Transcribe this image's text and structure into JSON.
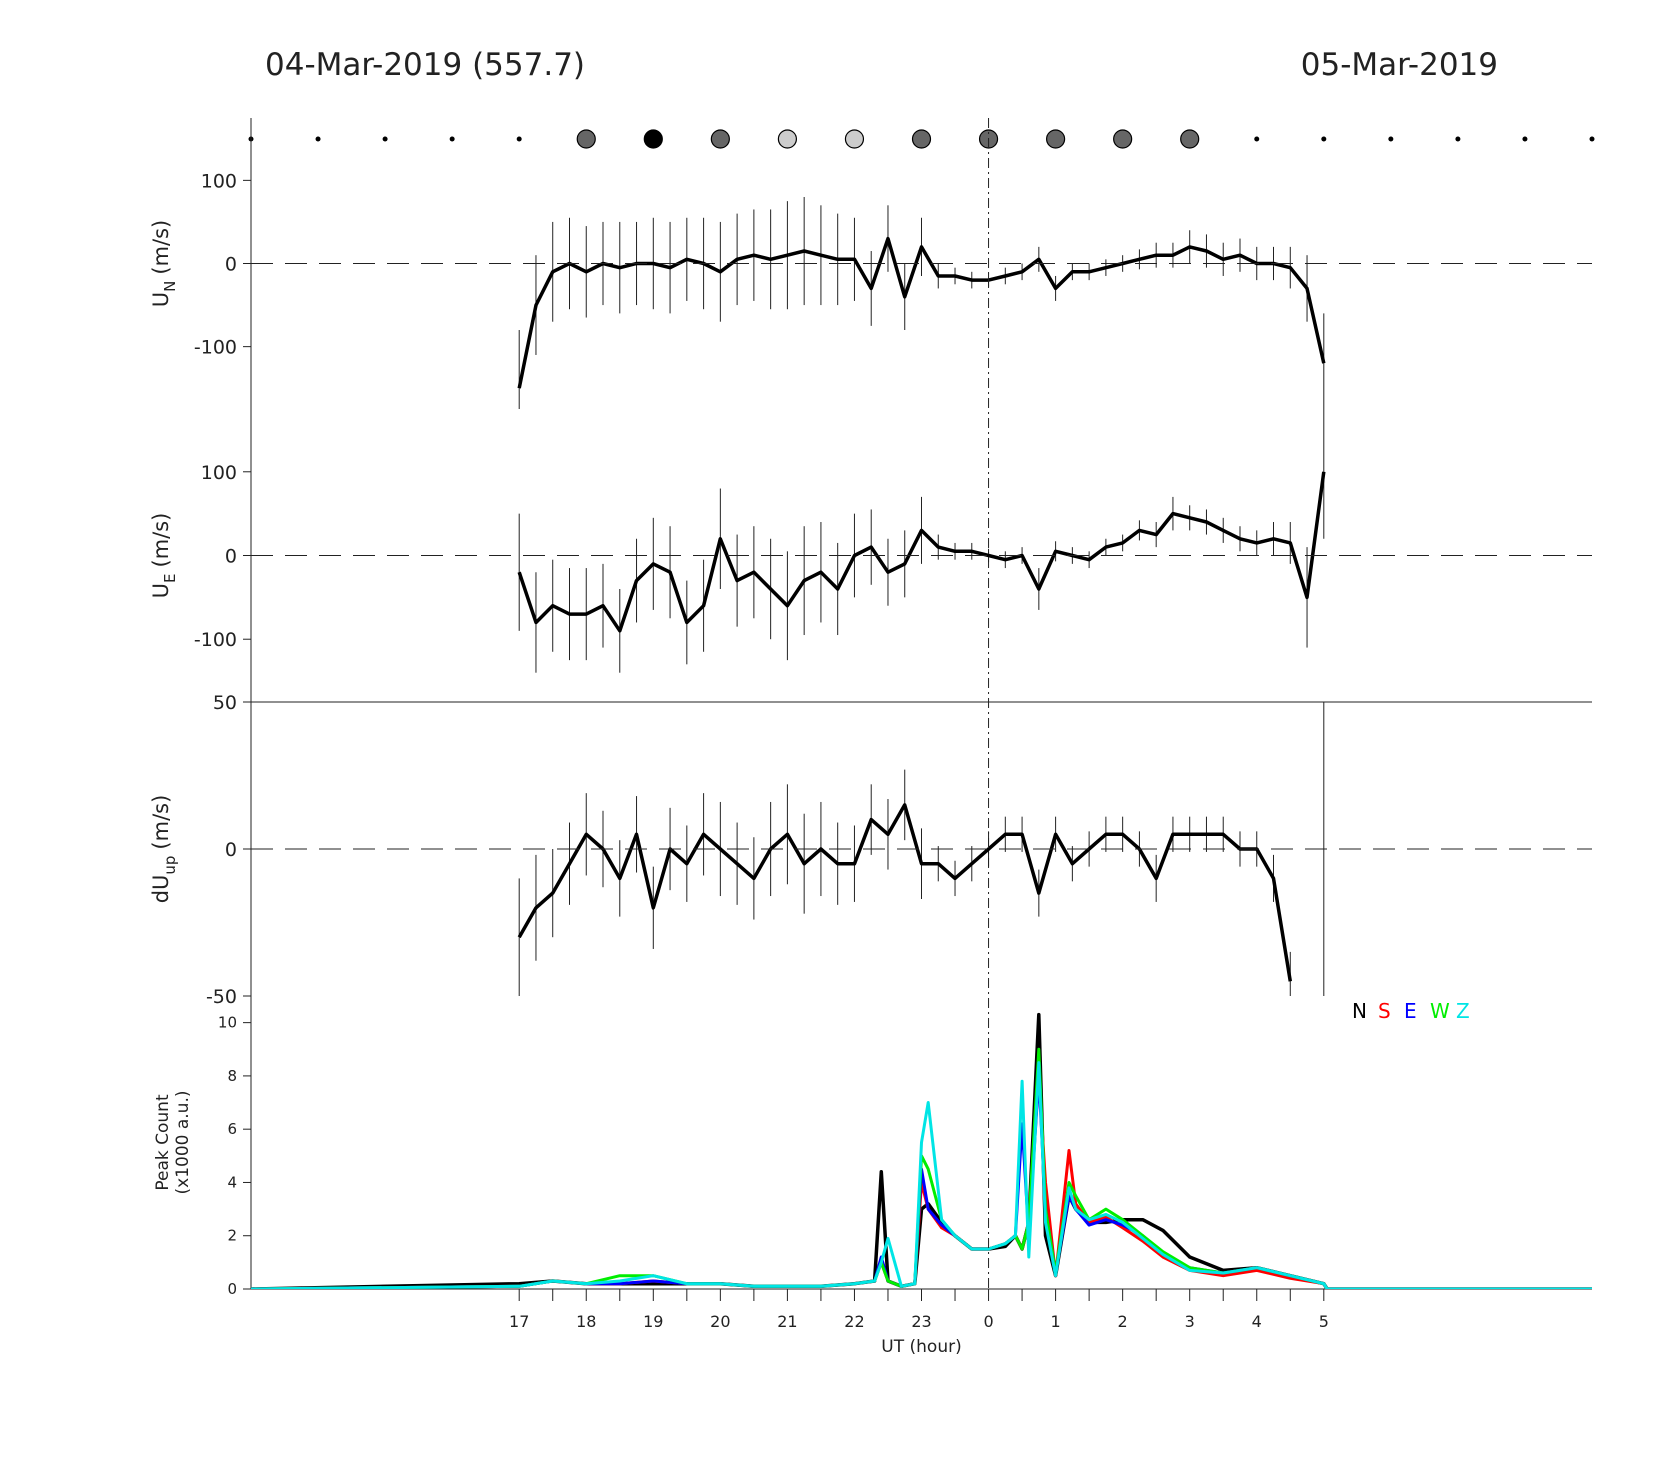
{
  "header": {
    "left": "04-Mar-2019 (557.7)",
    "right": "05-Mar-2019"
  },
  "chart_data": [
    {
      "type": "scatter",
      "x": [
        13,
        14,
        15,
        16,
        17,
        18,
        19,
        20,
        21,
        22,
        23,
        24,
        25,
        26,
        27,
        28,
        29,
        30,
        31,
        32,
        33
      ],
      "colors": [
        null,
        null,
        null,
        null,
        null,
        "#666666",
        "#000000",
        "#666666",
        "#cccccc",
        "#cccccc",
        "#666666",
        "#666666",
        "#666666",
        "#666666",
        "#666666",
        null,
        null,
        null,
        null,
        null,
        null
      ]
    },
    {
      "type": "line",
      "ylabel": {
        "base": "U",
        "sub": "N",
        "unit": "(m/s)"
      },
      "ylim": [
        -175,
        175
      ],
      "yticks": [
        -100,
        0,
        100
      ],
      "color": "#000000",
      "x": [
        17,
        17.25,
        17.5,
        17.75,
        18,
        18.25,
        18.5,
        18.75,
        19,
        19.25,
        19.5,
        19.75,
        20,
        20.25,
        20.5,
        20.75,
        21,
        21.25,
        21.5,
        21.75,
        22,
        22.25,
        22.5,
        22.75,
        23,
        23.25,
        23.5,
        23.75,
        24,
        24.25,
        24.5,
        24.75,
        25,
        25.25,
        25.5,
        25.75,
        26,
        26.25,
        26.5,
        26.75,
        27,
        27.25,
        27.5,
        27.75,
        28,
        28.25,
        28.5,
        28.75,
        29
      ],
      "values": [
        -150,
        -50,
        -10,
        0,
        -10,
        0,
        -5,
        0,
        0,
        -5,
        5,
        0,
        -10,
        5,
        10,
        5,
        10,
        15,
        10,
        5,
        5,
        -30,
        30,
        -40,
        20,
        -15,
        -15,
        -20,
        -20,
        -15,
        -10,
        5,
        -30,
        -10,
        -10,
        -5,
        0,
        5,
        10,
        10,
        20,
        15,
        5,
        10,
        0,
        0,
        -5,
        -30,
        -120
      ],
      "errors": [
        70,
        60,
        60,
        55,
        55,
        50,
        55,
        50,
        55,
        55,
        50,
        55,
        60,
        55,
        55,
        60,
        65,
        65,
        60,
        55,
        50,
        45,
        40,
        40,
        35,
        15,
        10,
        10,
        8,
        10,
        10,
        15,
        15,
        10,
        10,
        10,
        10,
        12,
        15,
        15,
        20,
        20,
        20,
        20,
        20,
        20,
        25,
        40,
        60
      ]
    },
    {
      "type": "line",
      "ylabel": {
        "base": "U",
        "sub": "E",
        "unit": "(m/s)"
      },
      "ylim": [
        -175,
        175
      ],
      "yticks": [
        -100,
        0,
        100
      ],
      "color": "#000000",
      "x": [
        17,
        17.25,
        17.5,
        17.75,
        18,
        18.25,
        18.5,
        18.75,
        19,
        19.25,
        19.5,
        19.75,
        20,
        20.25,
        20.5,
        20.75,
        21,
        21.25,
        21.5,
        21.75,
        22,
        22.25,
        22.5,
        22.75,
        23,
        23.25,
        23.5,
        23.75,
        24,
        24.25,
        24.5,
        24.75,
        25,
        25.25,
        25.5,
        25.75,
        26,
        26.25,
        26.5,
        26.75,
        27,
        27.25,
        27.5,
        27.75,
        28,
        28.25,
        28.5,
        28.75,
        29
      ],
      "values": [
        -20,
        -80,
        -60,
        -70,
        -70,
        -60,
        -90,
        -30,
        -10,
        -20,
        -80,
        -60,
        20,
        -30,
        -20,
        -40,
        -60,
        -30,
        -20,
        -40,
        0,
        10,
        -20,
        -10,
        30,
        10,
        5,
        5,
        0,
        -5,
        0,
        -40,
        5,
        0,
        -5,
        10,
        15,
        30,
        25,
        50,
        45,
        40,
        30,
        20,
        15,
        20,
        15,
        -50,
        100
      ],
      "errors": [
        70,
        60,
        55,
        55,
        55,
        50,
        50,
        50,
        55,
        55,
        50,
        55,
        60,
        55,
        55,
        60,
        65,
        65,
        60,
        55,
        50,
        45,
        40,
        40,
        40,
        15,
        10,
        10,
        8,
        10,
        10,
        25,
        12,
        10,
        10,
        10,
        10,
        12,
        15,
        20,
        15,
        15,
        15,
        15,
        15,
        20,
        25,
        60,
        80
      ]
    },
    {
      "type": "line",
      "ylabel": {
        "base": "dU",
        "sub": "up",
        "unit": "(m/s)"
      },
      "ylim": [
        -50,
        50
      ],
      "yticks": [
        -50,
        0,
        50
      ],
      "color": "#000000",
      "x": [
        17,
        17.25,
        17.5,
        17.75,
        18,
        18.25,
        18.5,
        18.75,
        19,
        19.25,
        19.5,
        19.75,
        20,
        20.25,
        20.5,
        20.75,
        21,
        21.25,
        21.5,
        21.75,
        22,
        22.25,
        22.5,
        22.75,
        23,
        23.25,
        23.5,
        23.75,
        24,
        24.25,
        24.5,
        24.75,
        25,
        25.25,
        25.5,
        25.75,
        26,
        26.25,
        26.5,
        26.75,
        27,
        27.25,
        27.5,
        27.75,
        28,
        28.25,
        28.5,
        28.75,
        29
      ],
      "values": [
        -30,
        -20,
        -15,
        -5,
        5,
        0,
        -10,
        5,
        -20,
        0,
        -5,
        5,
        0,
        -5,
        -10,
        0,
        5,
        -5,
        0,
        -5,
        -5,
        10,
        5,
        15,
        -5,
        -5,
        -10,
        -5,
        0,
        5,
        5,
        -15,
        5,
        -5,
        0,
        5,
        5,
        0,
        -10,
        5,
        5,
        5,
        5,
        0,
        0,
        -10,
        -45,
        null,
        0
      ],
      "errors": [
        20,
        18,
        15,
        14,
        14,
        13,
        13,
        13,
        14,
        14,
        13,
        14,
        16,
        14,
        14,
        16,
        17,
        17,
        16,
        14,
        13,
        12,
        12,
        12,
        12,
        6,
        6,
        6,
        6,
        6,
        6,
        8,
        6,
        6,
        6,
        6,
        6,
        6,
        8,
        6,
        6,
        6,
        6,
        6,
        6,
        8,
        10,
        null,
        50
      ]
    },
    {
      "type": "line",
      "ylabel": {
        "line1": "Peak Count",
        "line2": "(x1000 a.u.)"
      },
      "ylim": [
        0,
        11
      ],
      "yticks": [
        0,
        2,
        4,
        6,
        8,
        10
      ],
      "xlim": [
        13,
        33
      ],
      "xlabel": "UT (hour)",
      "xticks": [
        17,
        18,
        19,
        20,
        21,
        22,
        23,
        {
          "value": 24,
          "label": "0"
        },
        {
          "value": 25,
          "label": "1"
        },
        {
          "value": 26,
          "label": "2"
        },
        {
          "value": 27,
          "label": "3"
        },
        {
          "value": 28,
          "label": "4"
        },
        {
          "value": 29,
          "label": "5"
        }
      ],
      "xminorticks": [
        17.5,
        18.5,
        19.5,
        20.5,
        21.5,
        22.5,
        23.5,
        24.5,
        25.5,
        26.5,
        27.5,
        28.5
      ],
      "x": [
        13,
        17,
        17.5,
        18,
        18.5,
        19,
        19.5,
        20,
        20.5,
        21,
        21.5,
        22,
        22.3,
        22.4,
        22.5,
        22.7,
        22.9,
        23.0,
        23.1,
        23.3,
        23.5,
        23.75,
        24,
        24.25,
        24.4,
        24.5,
        24.6,
        24.75,
        24.85,
        25,
        25.2,
        25.3,
        25.5,
        25.75,
        26,
        26.3,
        26.6,
        27,
        27.5,
        28,
        28.5,
        29,
        29.05,
        33
      ],
      "series": [
        {
          "name": "N",
          "color": "#000000",
          "values": [
            0,
            0.2,
            0.3,
            0.2,
            0.2,
            0.2,
            0.2,
            0.2,
            0.1,
            0.1,
            0.1,
            0.2,
            0.3,
            4.4,
            0.3,
            0.1,
            0.2,
            3,
            3.2,
            2.5,
            2,
            1.5,
            1.5,
            1.6,
            2.0,
            1.5,
            2.5,
            10.3,
            2,
            0.5,
            3.5,
            3,
            2.5,
            2.5,
            2.6,
            2.6,
            2.2,
            1.2,
            0.7,
            0.8,
            0.5,
            0.2,
            0,
            0
          ]
        },
        {
          "name": "S",
          "color": "#ff0000",
          "values": [
            0,
            0.1,
            0.3,
            0.2,
            0.2,
            0.3,
            0.2,
            0.2,
            0.1,
            0.1,
            0.1,
            0.2,
            0.3,
            1,
            0.3,
            0.1,
            0.2,
            4,
            3,
            2.3,
            2,
            1.5,
            1.5,
            1.7,
            2,
            1.5,
            2.5,
            8,
            4,
            0.5,
            5.2,
            3.2,
            2.5,
            2.7,
            2.3,
            1.8,
            1.2,
            0.7,
            0.5,
            0.7,
            0.4,
            0.2,
            0,
            0
          ]
        },
        {
          "name": "E",
          "color": "#0000ff",
          "values": [
            0,
            0.1,
            0.3,
            0.2,
            0.2,
            0.3,
            0.2,
            0.2,
            0.1,
            0.1,
            0.1,
            0.2,
            0.3,
            1.2,
            0.3,
            0.1,
            0.2,
            4.5,
            3,
            2.4,
            2,
            1.5,
            1.5,
            1.7,
            2,
            6.2,
            2,
            8,
            3,
            0.6,
            3.5,
            3,
            2.4,
            2.6,
            2.4,
            2,
            1.3,
            0.8,
            0.6,
            0.8,
            0.5,
            0.2,
            0,
            0
          ]
        },
        {
          "name": "W",
          "color": "#00ee00",
          "values": [
            0,
            0.1,
            0.3,
            0.2,
            0.5,
            0.5,
            0.2,
            0.2,
            0.1,
            0.1,
            0.1,
            0.2,
            0.3,
            1,
            0.3,
            0.1,
            0.2,
            5,
            4.5,
            2.6,
            2,
            1.5,
            1.5,
            1.7,
            2,
            1.5,
            2.5,
            9,
            3,
            0.6,
            4,
            3.5,
            2.6,
            3,
            2.6,
            2,
            1.4,
            0.8,
            0.6,
            0.8,
            0.5,
            0.2,
            0,
            0
          ]
        },
        {
          "name": "Z",
          "color": "#00e5e5",
          "values": [
            0,
            0.1,
            0.3,
            0.2,
            0.3,
            0.5,
            0.2,
            0.2,
            0.1,
            0.1,
            0.1,
            0.2,
            0.3,
            1,
            1.9,
            0.1,
            0.2,
            5.5,
            7,
            2.6,
            2,
            1.5,
            1.5,
            1.7,
            2,
            7.8,
            1.2,
            8.5,
            2.5,
            0.5,
            3.8,
            3,
            2.6,
            2.8,
            2.5,
            1.9,
            1.3,
            0.7,
            0.6,
            0.8,
            0.5,
            0.2,
            0,
            0
          ]
        }
      ]
    }
  ]
}
